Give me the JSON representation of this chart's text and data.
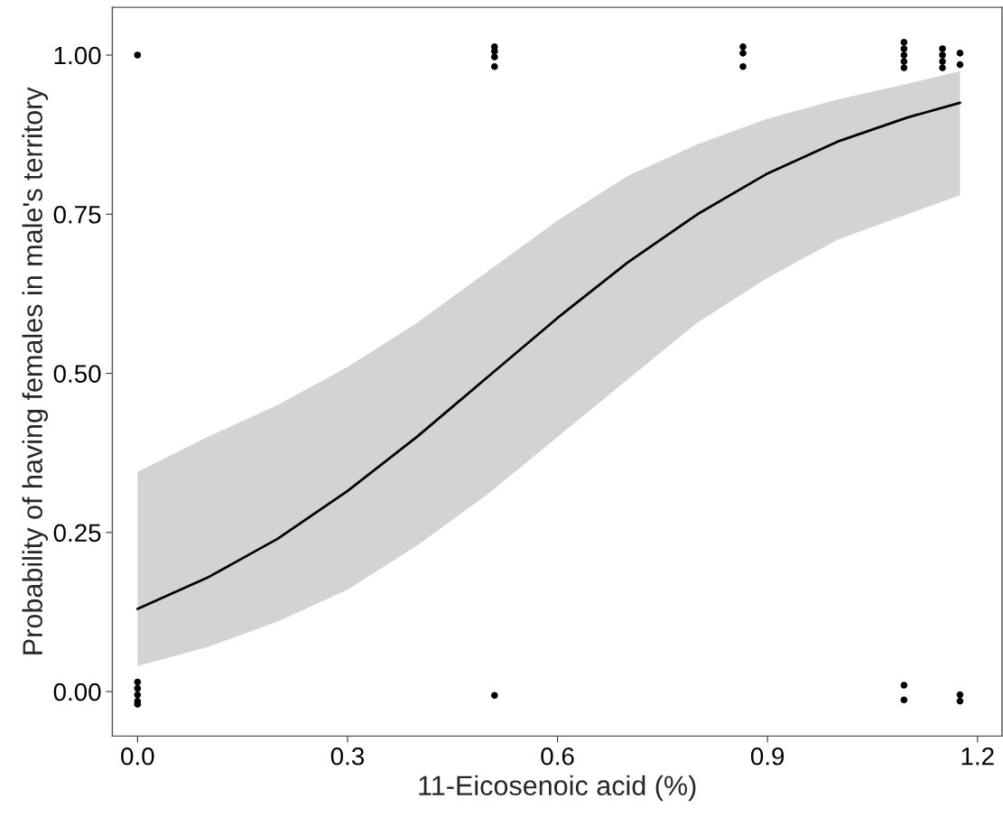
{
  "chart_data": {
    "type": "scatter",
    "xlabel": "11-Eicosenoic acid (%)",
    "ylabel": "Probability of having females in male's territory",
    "xlim": [
      -0.036,
      1.235
    ],
    "ylim": [
      -0.07,
      1.075
    ],
    "xticks": [
      {
        "value": 0,
        "label": "0.0"
      },
      0.3,
      0.6,
      0.9,
      {
        "value": 1.2,
        "label": "1.2"
      }
    ],
    "yticks": [
      {
        "value": 0,
        "label": "0.00"
      },
      {
        "value": 0.25,
        "label": "0.25"
      },
      {
        "value": 0.5,
        "label": "0.50"
      },
      {
        "value": 0.75,
        "label": "0.75"
      },
      {
        "value": 1,
        "label": "1.00"
      }
    ],
    "grid": false,
    "legend": false,
    "series": [
      {
        "type": "line",
        "color": "#000000",
        "x": [
          0,
          0.1,
          0.2,
          0.3,
          0.4,
          0.5,
          0.6,
          0.7,
          0.8,
          0.9,
          1.0,
          1.1,
          1.175
        ],
        "values": [
          0.13,
          0.179,
          0.24,
          0.315,
          0.401,
          0.494,
          0.587,
          0.674,
          0.75,
          0.814,
          0.864,
          0.902,
          0.925
        ],
        "lower": [
          0.04,
          0.07,
          0.11,
          0.16,
          0.23,
          0.31,
          0.4,
          0.49,
          0.58,
          0.65,
          0.71,
          0.75,
          0.78
        ],
        "upper": [
          0.345,
          0.4,
          0.45,
          0.51,
          0.58,
          0.66,
          0.74,
          0.81,
          0.86,
          0.9,
          0.93,
          0.955,
          0.975
        ],
        "marker": "none"
      },
      {
        "color": "#000000",
        "marker": "circle",
        "x": [
          0,
          0,
          0,
          0,
          0,
          0,
          0.51,
          0.51,
          0.51,
          0.51,
          0.51,
          0.865,
          0.865,
          0.865,
          1.095,
          1.095,
          1.095,
          1.095,
          1.095,
          1.095,
          1.095,
          1.15,
          1.15,
          1.15,
          1.15,
          1.175,
          1.175,
          1.175,
          1.175
        ],
        "values": [
          1.0,
          0.015,
          0.005,
          -0.005,
          -0.015,
          -0.02,
          1.013,
          1.006,
          0.997,
          0.982,
          -0.006,
          1.013,
          1.003,
          0.982,
          1.02,
          1.01,
          1.0,
          0.99,
          0.98,
          0.01,
          -0.013,
          1.01,
          1.0,
          0.99,
          0.98,
          1.003,
          0.985,
          -0.005,
          -0.015
        ]
      }
    ]
  }
}
